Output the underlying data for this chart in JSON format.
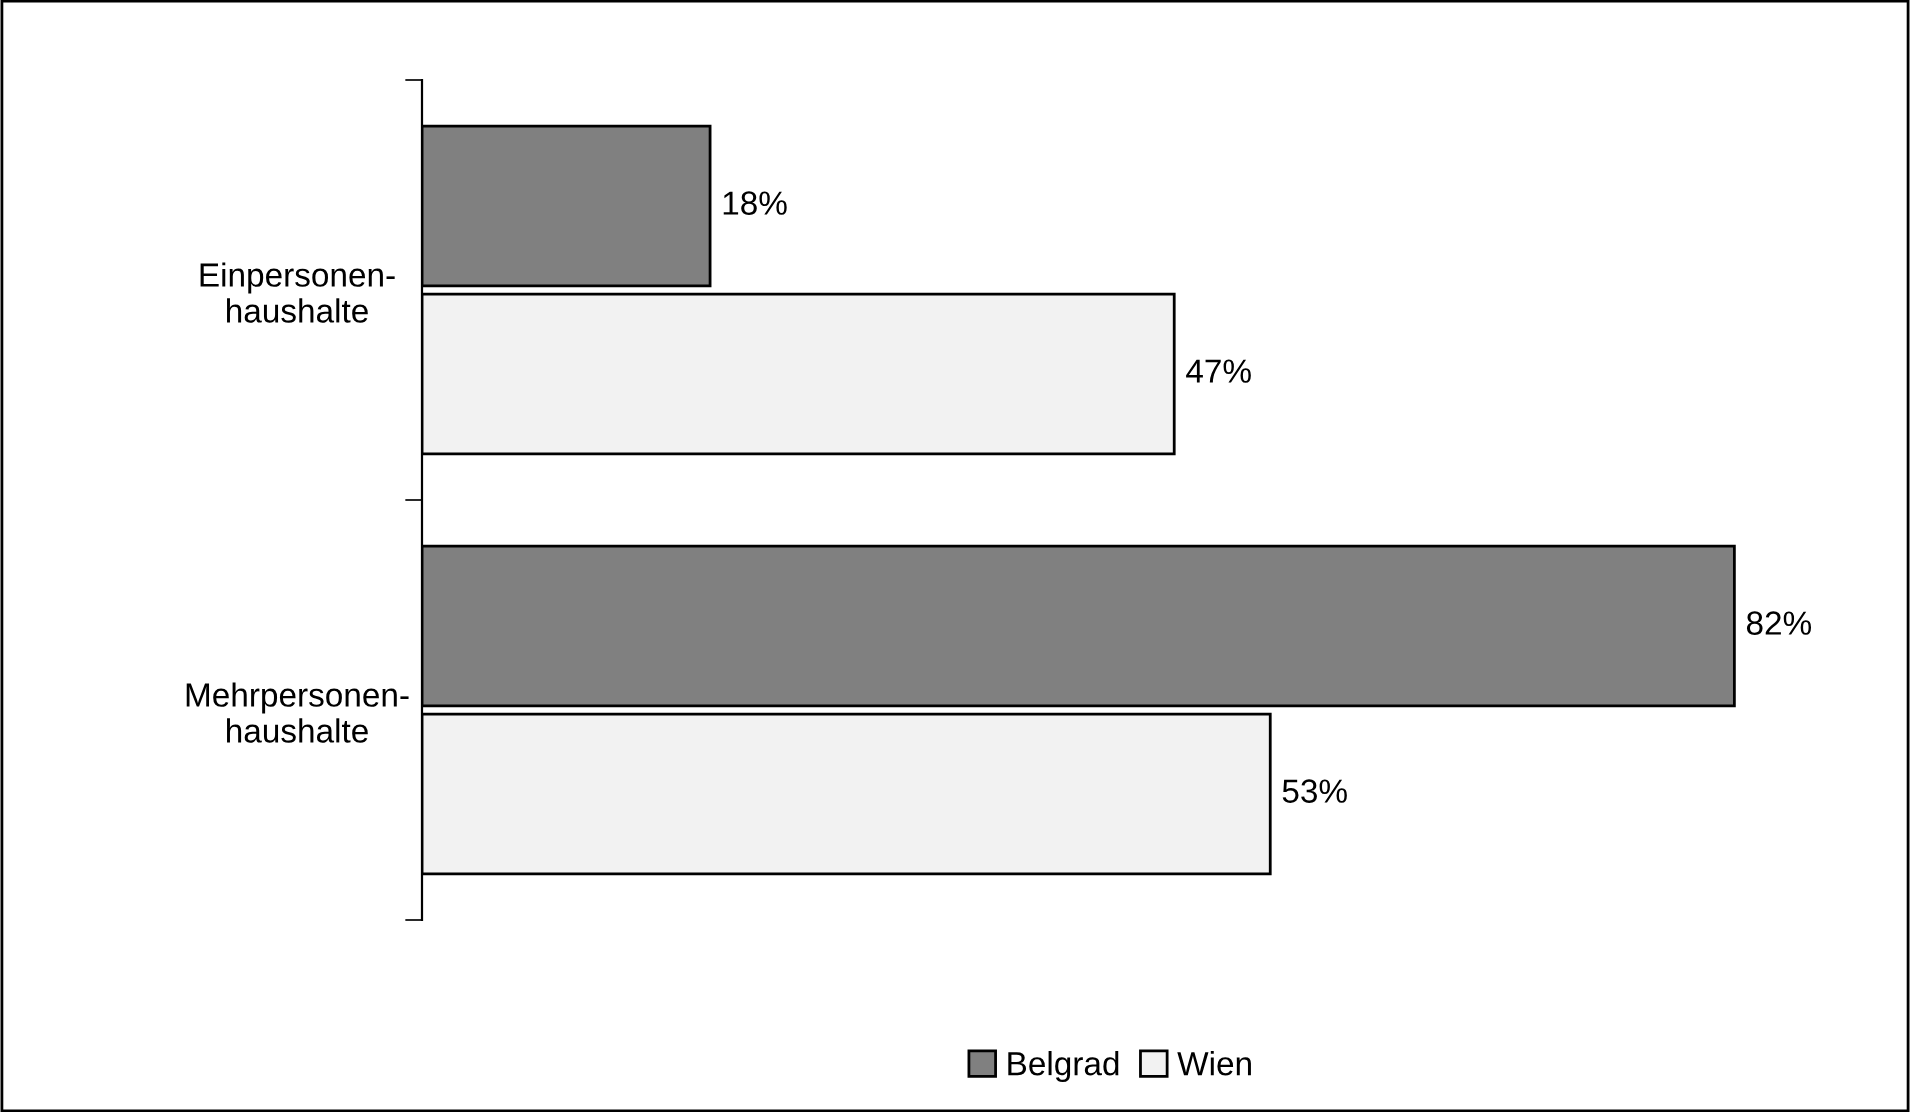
{
  "chart_data": {
    "type": "bar",
    "orientation": "horizontal",
    "categories": [
      "Einpersonen-\nhaushalte",
      "Mehrpersonen-\nhaushalte"
    ],
    "series": [
      {
        "name": "Belgrad",
        "color": "#808080",
        "values": [
          18,
          82
        ],
        "value_labels": [
          "18%",
          "82%"
        ]
      },
      {
        "name": "Wien",
        "color": "#f2f2f2",
        "values": [
          47,
          53
        ],
        "value_labels": [
          "47%",
          "53%"
        ]
      }
    ],
    "legend": "bottom",
    "grid": false
  }
}
